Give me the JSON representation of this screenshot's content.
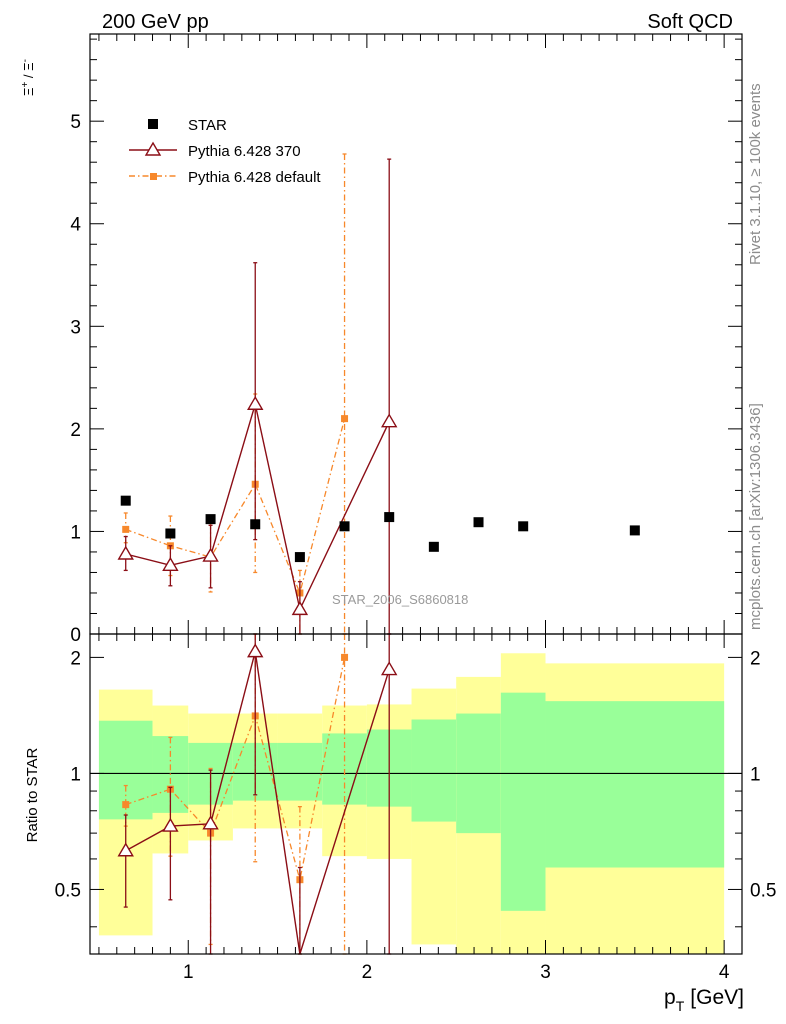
{
  "header": {
    "left": "200 GeV pp",
    "right": "Soft QCD"
  },
  "side_labels": {
    "top": "Rivet 3.1.10, ≥ 100k events",
    "bottom": "mcplots.cern.ch [arXiv:1306.3436]"
  },
  "watermark": "STAR_2006_S6860818",
  "colors": {
    "star": "#000000",
    "p370": "#8b0e16",
    "pdef": "#f7882b",
    "band_outer": "#ffff99",
    "band_inner": "#99ff99"
  },
  "chart_data": [
    {
      "type": "scatter",
      "panel": "main",
      "ylabel_parts": {
        "num": "Ξ",
        "num_sup": "+",
        "sep": " / ",
        "den": "Ξ",
        "den_sup": "-"
      },
      "xlabel": "",
      "xlim": [
        0.45,
        4.1
      ],
      "ylim": [
        0,
        5.85
      ],
      "yticks": [
        0,
        1,
        2,
        3,
        4,
        5
      ],
      "ytick_labels": [
        "0",
        "1",
        "2",
        "3",
        "4",
        "5"
      ],
      "legend": [
        "STAR",
        "Pythia 6.428 370",
        "Pythia 6.428 default"
      ],
      "legend_position": "top-left",
      "series": [
        {
          "name": "STAR",
          "style": "square",
          "x": [
            0.65,
            0.9,
            1.125,
            1.375,
            1.625,
            1.875,
            2.125,
            2.375,
            2.625,
            2.875,
            3.5
          ],
          "values": [
            1.3,
            0.98,
            1.12,
            1.07,
            0.75,
            1.05,
            1.14,
            0.85,
            1.09,
            1.05,
            1.01
          ],
          "xerr": [
            0.15,
            0.1,
            0.125,
            0.125,
            0.125,
            0.125,
            0.125,
            0.125,
            0.125,
            0.125,
            0.5
          ]
        },
        {
          "name": "Pythia 6.428 370",
          "style": "triangle",
          "x": [
            0.65,
            0.9,
            1.125,
            1.375,
            1.625,
            2.125
          ],
          "values": [
            0.78,
            0.67,
            0.76,
            2.24,
            0.24,
            2.07
          ],
          "lo": [
            0.62,
            0.47,
            0.45,
            0.92,
            0.0,
            0.0
          ],
          "hi": [
            0.95,
            0.86,
            1.06,
            3.62,
            0.51,
            4.63
          ]
        },
        {
          "name": "Pythia 6.428 default",
          "style": "filled-square",
          "x": [
            0.65,
            0.9,
            1.125,
            1.375,
            1.625,
            1.875
          ],
          "values": [
            1.02,
            0.86,
            0.75,
            1.46,
            0.4,
            2.1
          ],
          "lo": [
            0.89,
            0.57,
            0.41,
            0.6,
            0.0,
            0.0
          ],
          "hi": [
            1.18,
            1.15,
            1.08,
            2.34,
            0.62,
            4.68
          ]
        }
      ]
    },
    {
      "type": "scatter",
      "panel": "ratio",
      "ylabel": "Ratio to STAR",
      "xlabel_main": "p",
      "xlabel_sub": "T",
      "xlabel_unit": "[GeV]",
      "xlim": [
        0.45,
        4.1
      ],
      "ylim": [
        0.34,
        2.3
      ],
      "yticks": [
        0.5,
        1,
        2
      ],
      "ytick_labels": [
        "0.5",
        "1",
        "2"
      ],
      "xticks": [
        1,
        2,
        3,
        4
      ],
      "xtick_labels": [
        "1",
        "2",
        "3",
        "4"
      ],
      "bands": {
        "edges": [
          0.5,
          0.8,
          1.0,
          1.25,
          1.5,
          1.75,
          2.0,
          2.25,
          2.5,
          2.75,
          3.0,
          4.0
        ],
        "outer_lo": [
          0.38,
          0.62,
          0.67,
          0.72,
          0.72,
          0.61,
          0.6,
          0.36,
          0.34,
          0.34,
          0.34
        ],
        "outer_hi": [
          1.65,
          1.5,
          1.43,
          1.43,
          1.43,
          1.5,
          1.51,
          1.66,
          1.78,
          2.05,
          1.93
        ],
        "inner_lo": [
          0.76,
          0.79,
          0.83,
          0.85,
          0.85,
          0.83,
          0.82,
          0.75,
          0.7,
          0.44,
          0.57
        ],
        "inner_hi": [
          1.37,
          1.25,
          1.2,
          1.2,
          1.2,
          1.27,
          1.3,
          1.38,
          1.43,
          1.62,
          1.54
        ]
      },
      "series": [
        {
          "name": "Pythia 6.428 370",
          "style": "triangle",
          "x": [
            0.65,
            0.9,
            1.125,
            1.375,
            1.625,
            2.125
          ],
          "values": [
            0.63,
            0.73,
            0.74,
            2.07,
            0.28,
            1.86
          ],
          "lo": [
            0.45,
            0.47,
            0.32,
            0.88,
            0.28,
            0.28
          ],
          "hi": [
            0.78,
            0.92,
            1.02,
            2.3,
            0.57,
            2.3
          ]
        },
        {
          "name": "Pythia 6.428 default",
          "style": "filled-square",
          "x": [
            0.65,
            0.9,
            1.125,
            1.375,
            1.625,
            1.875
          ],
          "values": [
            0.83,
            0.91,
            0.7,
            1.41,
            0.53,
            2.0
          ],
          "lo": [
            0.73,
            0.61,
            0.36,
            0.59,
            0.28,
            0.28
          ],
          "hi": [
            0.93,
            1.24,
            1.03,
            2.3,
            0.82,
            2.3
          ]
        }
      ]
    }
  ]
}
